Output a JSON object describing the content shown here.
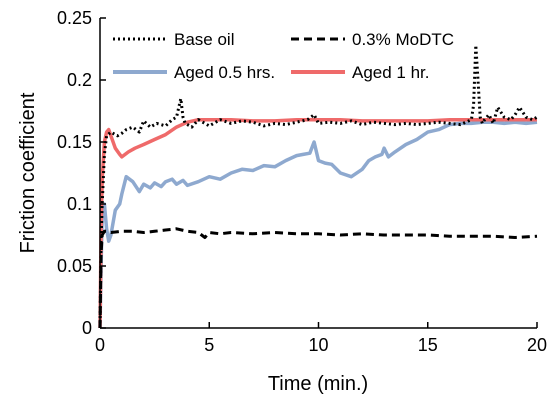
{
  "chart_data": {
    "type": "line",
    "title": "",
    "xlabel": "Time (min.)",
    "ylabel": "Friction coefficient",
    "xlim": [
      0,
      20
    ],
    "ylim": [
      0,
      0.25
    ],
    "x_ticks": [
      0,
      5,
      10,
      15,
      20
    ],
    "y_ticks": [
      0,
      0.05,
      0.1,
      0.15,
      0.2,
      0.25
    ],
    "x_tick_labels": [
      "0",
      "5",
      "10",
      "15",
      "20"
    ],
    "y_tick_labels": [
      "0",
      "0.05",
      "0.1",
      "0.15",
      "0.2",
      "0.25"
    ],
    "grid": false,
    "legend_position": "top",
    "series": [
      {
        "name": "Base oil",
        "color": "#000000",
        "style": "dotted",
        "x": [
          0,
          0.05,
          0.1,
          0.2,
          0.3,
          0.5,
          0.8,
          1.0,
          1.2,
          1.5,
          1.8,
          2.0,
          2.3,
          2.6,
          3.0,
          3.3,
          3.5,
          3.7,
          3.8,
          3.9,
          4.2,
          4.5,
          5.0,
          5.5,
          6.0,
          6.5,
          7.0,
          7.5,
          8.0,
          8.5,
          9.0,
          9.5,
          9.8,
          10.0,
          10.5,
          11.0,
          11.5,
          12.0,
          12.5,
          13.0,
          13.5,
          14.0,
          14.5,
          15.0,
          15.5,
          16.0,
          16.5,
          17.0,
          17.1,
          17.2,
          17.3,
          17.4,
          17.5,
          17.6,
          17.8,
          18.0,
          18.2,
          18.5,
          18.8,
          19.0,
          19.2,
          19.5,
          19.8,
          20.0
        ],
        "values": [
          0.0,
          0.07,
          0.1,
          0.14,
          0.155,
          0.158,
          0.155,
          0.157,
          0.16,
          0.162,
          0.158,
          0.167,
          0.162,
          0.165,
          0.163,
          0.168,
          0.17,
          0.185,
          0.17,
          0.165,
          0.162,
          0.168,
          0.163,
          0.168,
          0.165,
          0.167,
          0.166,
          0.163,
          0.165,
          0.164,
          0.166,
          0.168,
          0.172,
          0.165,
          0.166,
          0.165,
          0.167,
          0.164,
          0.166,
          0.165,
          0.164,
          0.165,
          0.164,
          0.165,
          0.166,
          0.165,
          0.164,
          0.168,
          0.18,
          0.228,
          0.2,
          0.17,
          0.165,
          0.168,
          0.172,
          0.165,
          0.178,
          0.17,
          0.168,
          0.172,
          0.178,
          0.17,
          0.168,
          0.17
        ]
      },
      {
        "name": "0.3% MoDTC",
        "color": "#000000",
        "style": "dashed",
        "x": [
          0,
          0.05,
          0.1,
          0.2,
          0.3,
          0.5,
          1.0,
          1.5,
          2.0,
          2.5,
          3.0,
          3.5,
          4.0,
          4.5,
          4.8,
          5.0,
          5.5,
          6.0,
          7.0,
          8.0,
          9.0,
          10.0,
          11.0,
          12.0,
          13.0,
          14.0,
          15.0,
          16.0,
          17.0,
          18.0,
          19.0,
          20.0
        ],
        "values": [
          0.0,
          0.06,
          0.075,
          0.078,
          0.078,
          0.077,
          0.078,
          0.078,
          0.077,
          0.078,
          0.079,
          0.08,
          0.078,
          0.077,
          0.073,
          0.077,
          0.076,
          0.077,
          0.076,
          0.077,
          0.076,
          0.076,
          0.075,
          0.076,
          0.075,
          0.075,
          0.075,
          0.074,
          0.074,
          0.074,
          0.073,
          0.074
        ]
      },
      {
        "name": "Aged 0.5 hrs.",
        "color": "#8ea9cf",
        "style": "solid",
        "x": [
          0,
          0.05,
          0.1,
          0.2,
          0.3,
          0.4,
          0.5,
          0.7,
          0.9,
          1.0,
          1.2,
          1.5,
          1.8,
          2.0,
          2.3,
          2.5,
          2.8,
          3.0,
          3.3,
          3.5,
          3.8,
          4.0,
          4.5,
          5.0,
          5.5,
          6.0,
          6.5,
          7.0,
          7.5,
          8.0,
          8.5,
          9.0,
          9.3,
          9.6,
          9.8,
          10.0,
          10.3,
          10.6,
          11.0,
          11.5,
          12.0,
          12.3,
          12.6,
          12.9,
          13.0,
          13.2,
          13.5,
          14.0,
          14.5,
          15.0,
          15.5,
          16.0,
          16.5,
          17.0,
          17.5,
          18.0,
          18.5,
          19.0,
          19.5,
          20.0
        ],
        "values": [
          0.0,
          0.05,
          0.09,
          0.1,
          0.08,
          0.07,
          0.075,
          0.095,
          0.1,
          0.108,
          0.122,
          0.118,
          0.11,
          0.116,
          0.113,
          0.117,
          0.114,
          0.118,
          0.12,
          0.116,
          0.119,
          0.115,
          0.118,
          0.122,
          0.12,
          0.125,
          0.128,
          0.127,
          0.131,
          0.13,
          0.135,
          0.139,
          0.14,
          0.141,
          0.15,
          0.135,
          0.133,
          0.132,
          0.125,
          0.122,
          0.128,
          0.135,
          0.138,
          0.14,
          0.145,
          0.138,
          0.142,
          0.148,
          0.152,
          0.158,
          0.16,
          0.164,
          0.165,
          0.165,
          0.166,
          0.166,
          0.165,
          0.166,
          0.165,
          0.166
        ]
      },
      {
        "name": "Aged 1 hr.",
        "color": "#ef6a6a",
        "style": "solid",
        "x": [
          0,
          0.05,
          0.1,
          0.2,
          0.3,
          0.4,
          0.5,
          0.7,
          0.9,
          1.0,
          1.3,
          1.6,
          2.0,
          2.5,
          3.0,
          3.5,
          4.0,
          4.5,
          5.0,
          6.0,
          7.0,
          8.0,
          9.0,
          10.0,
          11.0,
          12.0,
          13.0,
          14.0,
          15.0,
          16.0,
          17.0,
          18.0,
          19.0,
          20.0
        ],
        "values": [
          0.0,
          0.08,
          0.12,
          0.15,
          0.158,
          0.16,
          0.155,
          0.145,
          0.14,
          0.138,
          0.142,
          0.145,
          0.148,
          0.152,
          0.156,
          0.162,
          0.166,
          0.168,
          0.168,
          0.168,
          0.167,
          0.167,
          0.168,
          0.168,
          0.168,
          0.167,
          0.167,
          0.167,
          0.167,
          0.168,
          0.168,
          0.168,
          0.168,
          0.168
        ]
      }
    ]
  }
}
